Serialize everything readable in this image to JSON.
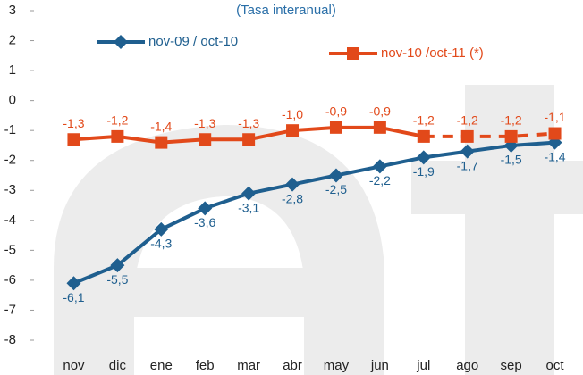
{
  "chart_data": {
    "type": "line",
    "subtitle": "(Tasa interanual)",
    "categories": [
      "nov",
      "dic",
      "ene",
      "feb",
      "mar",
      "abr",
      "may",
      "jun",
      "jul",
      "ago",
      "sep",
      "oct"
    ],
    "series": [
      {
        "name": "nov-09 / oct-10",
        "color": "#1f5f8f",
        "marker": "diamond",
        "label_side": "below",
        "values": [
          -6.1,
          -5.5,
          -4.3,
          -3.6,
          -3.1,
          -2.8,
          -2.5,
          -2.2,
          -1.9,
          -1.7,
          -1.5,
          -1.4
        ],
        "value_labels": [
          "-6,1",
          "-5,5",
          "-4,3",
          "-3,6",
          "-3,1",
          "-2,8",
          "-2,5",
          "-2,2",
          "-1,9",
          "-1,7",
          "-1,5",
          "-1,4"
        ]
      },
      {
        "name": "nov-10 /oct-11 (*)",
        "color": "#e2491a",
        "marker": "square",
        "label_side": "above",
        "dashed_from": 8,
        "values": [
          -1.3,
          -1.2,
          -1.4,
          -1.3,
          -1.3,
          -1.0,
          -0.9,
          -0.9,
          -1.2,
          -1.2,
          -1.2,
          -1.1
        ],
        "value_labels": [
          "-1,3",
          "-1,2",
          "-1,4",
          "-1,3",
          "-1,3",
          "-1,0",
          "-0,9",
          "-0,9",
          "-1,2",
          "-1,2",
          "-1,2",
          "-1,1"
        ]
      }
    ],
    "ylim": [
      -8,
      3
    ],
    "yticks": [
      -8,
      -7,
      -6,
      -5,
      -4,
      -3,
      -2,
      -1,
      0,
      1,
      2,
      3
    ],
    "grid": false
  }
}
